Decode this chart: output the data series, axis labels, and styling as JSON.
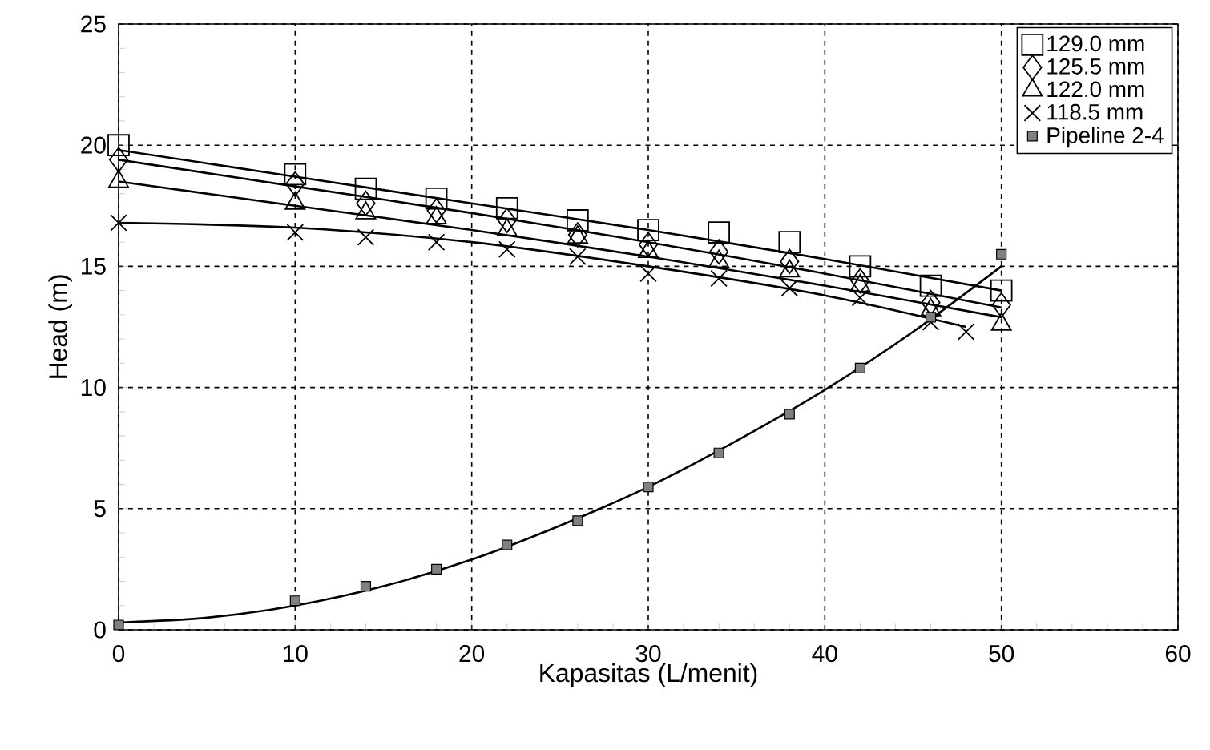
{
  "chart_data": {
    "type": "scatter",
    "xlabel": "Kapasitas (L/menit)",
    "ylabel": "Head (m)",
    "xlim": [
      0,
      60
    ],
    "ylim": [
      0,
      25
    ],
    "xticks": [
      0,
      10,
      20,
      30,
      40,
      50,
      60
    ],
    "yticks": [
      0,
      5,
      10,
      15,
      20,
      25
    ],
    "grid": true,
    "legend": "top right",
    "series": [
      {
        "name": "129.0 mm",
        "color": "#000000",
        "marker": "square",
        "x": [
          0,
          10,
          14,
          18,
          22,
          26,
          30,
          34,
          38,
          42,
          46,
          50
        ],
        "values": [
          20.0,
          18.8,
          18.2,
          17.8,
          17.4,
          16.9,
          16.5,
          16.4,
          16.0,
          15.0,
          14.2,
          14.0
        ]
      },
      {
        "name": "125.5 mm",
        "color": "#000000",
        "marker": "diamond",
        "x": [
          0,
          10,
          14,
          18,
          22,
          26,
          30,
          34,
          38,
          42,
          46,
          50
        ],
        "values": [
          19.4,
          18.4,
          17.6,
          17.3,
          16.9,
          16.3,
          15.9,
          15.6,
          15.2,
          14.4,
          13.5,
          13.4
        ]
      },
      {
        "name": "122.0 mm",
        "color": "#000000",
        "marker": "triangle",
        "x": [
          0,
          10,
          14,
          18,
          22,
          26,
          30,
          34,
          38,
          42,
          46,
          50
        ],
        "values": [
          18.5,
          17.6,
          17.2,
          17.0,
          16.5,
          16.2,
          15.6,
          15.2,
          14.8,
          14.2,
          13.2,
          12.6
        ]
      },
      {
        "name": "118.5 mm",
        "color": "#000000",
        "marker": "cross",
        "x": [
          0,
          10,
          14,
          18,
          22,
          26,
          30,
          34,
          38,
          42,
          46,
          48
        ],
        "values": [
          16.8,
          16.4,
          16.2,
          16.0,
          15.7,
          15.4,
          14.7,
          14.5,
          14.1,
          13.7,
          12.7,
          12.3
        ]
      },
      {
        "name": "Pipeline 2-4",
        "color": "#808080",
        "marker": "square",
        "x": [
          0,
          10,
          14,
          18,
          22,
          26,
          30,
          34,
          38,
          42,
          46,
          50
        ],
        "values": [
          0.2,
          1.2,
          1.8,
          2.5,
          3.5,
          4.5,
          5.9,
          7.3,
          8.9,
          10.8,
          12.9,
          15.5
        ]
      },
      {
        "type": "line",
        "color": "#000000",
        "marker": "none",
        "x": [
          0,
          10,
          20,
          30,
          40,
          50
        ],
        "values": [
          19.8,
          18.7,
          17.6,
          16.5,
          15.3,
          14.0
        ]
      },
      {
        "type": "line",
        "color": "#000000",
        "marker": "none",
        "x": [
          0,
          10,
          20,
          30,
          40,
          50
        ],
        "values": [
          19.4,
          18.3,
          17.2,
          16.0,
          14.7,
          13.3
        ]
      },
      {
        "type": "line",
        "color": "#000000",
        "marker": "none",
        "x": [
          0,
          10,
          20,
          30,
          40,
          50
        ],
        "values": [
          18.5,
          17.5,
          16.5,
          15.4,
          14.2,
          12.9
        ]
      },
      {
        "type": "line",
        "color": "#000000",
        "marker": "none",
        "x": [
          0,
          10,
          20,
          30,
          40,
          48
        ],
        "values": [
          16.8,
          16.6,
          16.0,
          15.0,
          13.8,
          12.5
        ]
      },
      {
        "type": "line",
        "color": "#000000",
        "marker": "none",
        "x": [
          0,
          5,
          10,
          15,
          20,
          25,
          30,
          35,
          40,
          45,
          50
        ],
        "values": [
          0.3,
          0.5,
          1.0,
          1.8,
          2.9,
          4.3,
          5.9,
          7.8,
          9.9,
          12.3,
          15.0
        ]
      }
    ]
  }
}
